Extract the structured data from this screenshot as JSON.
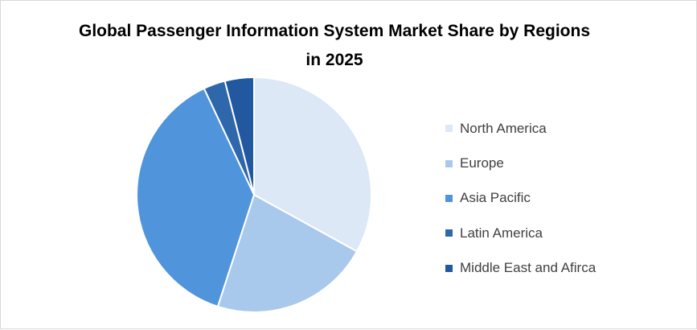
{
  "chart_data": {
    "type": "pie",
    "title": "Global Passenger Information System Market Share by Regions in 2025",
    "categories": [
      "North America",
      "Europe",
      "Asia Pacific",
      "Latin America",
      "Middle East and Afirca"
    ],
    "values": [
      33,
      22,
      38,
      3,
      4
    ],
    "colors": [
      "#dce8f6",
      "#a9c9ec",
      "#5095dc",
      "#2f67ab",
      "#22589f"
    ],
    "legend_position": "right",
    "start_angle_deg": 0,
    "direction": "clockwise"
  }
}
